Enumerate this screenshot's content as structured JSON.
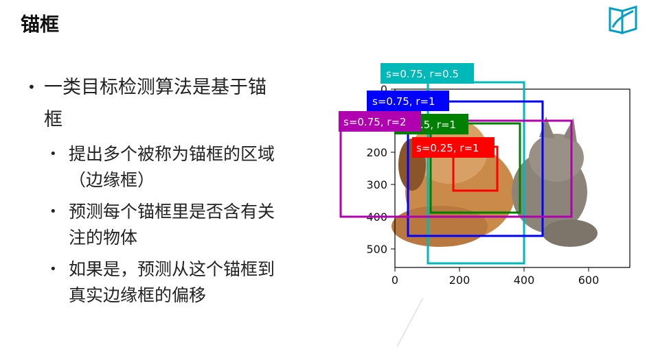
{
  "slide": {
    "title": "锚框",
    "logo_icon": "open-book-logo-icon",
    "accent": "#00a0c6"
  },
  "bullets": [
    {
      "text": "一类目标检测算法是基于锚框",
      "line1": "一类目标检测算法是基于锚",
      "line2": "框",
      "sub": [
        {
          "line1": "提出多个被称为锚框的区域",
          "line2": "（边缘框）"
        },
        {
          "line1": "预测每个锚框里是否含有关",
          "line2": "注的物体"
        },
        {
          "line1": "如果是，预测从这个锚框到",
          "line2": "真实边缘框的偏移"
        }
      ]
    }
  ],
  "figure": {
    "image_desc_icon": "dog-and-cat-photo",
    "x_ticks": [
      "0",
      "200",
      "400",
      "600"
    ],
    "y_ticks": [
      "0",
      "100",
      "200",
      "300",
      "400",
      "500"
    ],
    "anchors": [
      {
        "label": "s=0.75, r=0.5",
        "color": "#00b8b8"
      },
      {
        "label": "s=0.75, r=1",
        "color": "#0000ff"
      },
      {
        "label": "s=0.75, r=2",
        "color": "#b000b0"
      },
      {
        "label": "s=0.5, r=1",
        "color": "#008000"
      },
      {
        "label": "s=0.25, r=1",
        "color": "#ff0000"
      }
    ]
  }
}
